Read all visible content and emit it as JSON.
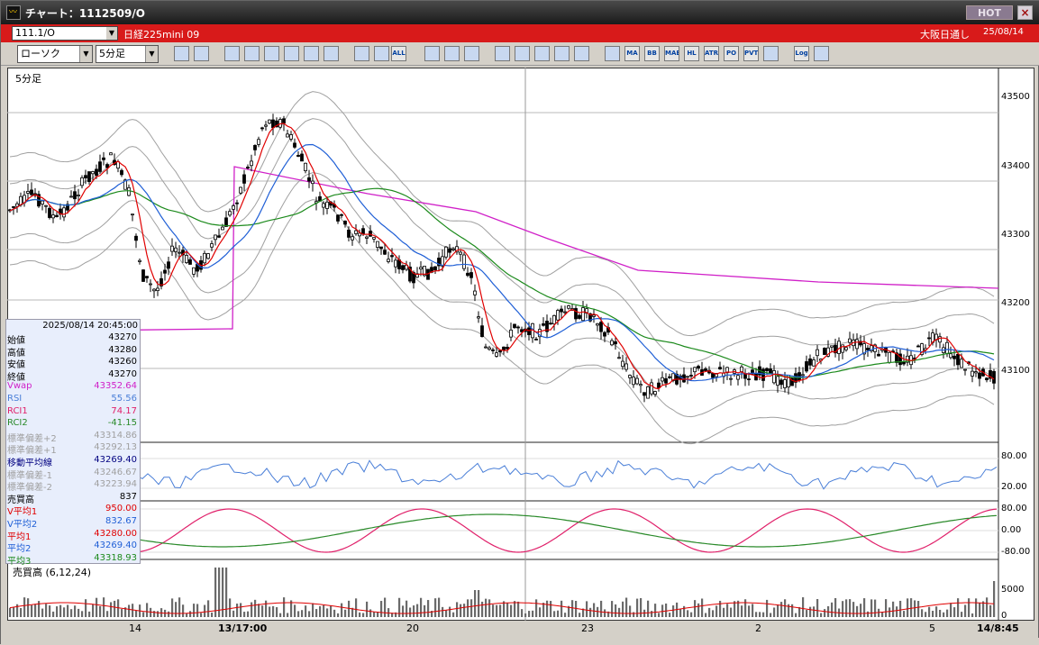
{
  "window": {
    "title": "チャート：1112509/O",
    "hot_label": "HOT",
    "close_glyph": "×",
    "app_icon_glyph": "〰"
  },
  "infobar": {
    "symbol": "111.1/O",
    "instrument": "日経225mini 09",
    "session": "大阪日通し",
    "date": "25/08/14"
  },
  "toolbar": {
    "chart_type": "ローソク",
    "timeframe": "5分足",
    "buttons": [
      "magnifier-icon",
      "window-icon",
      "pencil-icon",
      "tool-icon",
      "cursor-icon",
      "return-icon",
      "notepad-icon",
      "trash-icon",
      "candle-a-icon",
      "candle-b-icon",
      "ALL",
      "gear-icon",
      "brush-icon",
      "palette-icon",
      "download-icon",
      "zoom-icon",
      "grid-icon",
      "mark-icon",
      "disabled-icon",
      "indicator-icon",
      "MA",
      "BB",
      "MAE",
      "HL",
      "ATR",
      "PO",
      "PVT",
      "box-icon",
      "Log",
      "exit-icon"
    ]
  },
  "chart": {
    "timeframe_label": "5分足",
    "volume_label": "売買高 (6,12,24)",
    "colors": {
      "ma_short": "#e00000",
      "ma_mid": "#1f5fd6",
      "ma_long": "#1c8a1c",
      "vwap": "#d020c8",
      "bands": "#a0a0a0",
      "rsi": "#4a7fd8",
      "rci1": "#e0206a",
      "rci2": "#2a8a2a",
      "grid": "#b8b8b8"
    },
    "price_axis": [
      "43500",
      "43400",
      "43300",
      "43200",
      "43100"
    ],
    "rsi_axis": [
      "80.00",
      "20.00"
    ],
    "rci_axis": [
      "80.00",
      "0.00",
      "-80.00"
    ],
    "volume_axis": [
      "5000",
      "0"
    ],
    "x_labels": [
      "14",
      "13/17:00",
      "20",
      "23",
      "2",
      "5",
      "14/8:45"
    ]
  },
  "panel": {
    "datetime": "2025/08/14  20:45:00",
    "rows": [
      {
        "key": "始値",
        "value": "43270",
        "color": "#000000"
      },
      {
        "key": "高値",
        "value": "43280",
        "color": "#000000"
      },
      {
        "key": "安値",
        "value": "43260",
        "color": "#000000"
      },
      {
        "key": "終値",
        "value": "43270",
        "color": "#000000"
      },
      {
        "key": "Vwap",
        "value": "43352.64",
        "color": "#d020c8"
      },
      {
        "key": "RSI",
        "value": "55.56",
        "color": "#4a7fd8"
      },
      {
        "key": "RCI1",
        "value": "74.17",
        "color": "#e0206a"
      },
      {
        "key": "RCI2",
        "value": "-41.15",
        "color": "#2a8a2a"
      },
      {
        "key": "標準偏差+2",
        "value": "43314.86",
        "color": "#a0a0a0"
      },
      {
        "key": "標準偏差+1",
        "value": "43292.13",
        "color": "#a0a0a0"
      },
      {
        "key": "移動平均線",
        "value": "43269.40",
        "color": "#000080"
      },
      {
        "key": "標準偏差-1",
        "value": "43246.67",
        "color": "#a0a0a0"
      },
      {
        "key": "標準偏差-2",
        "value": "43223.94",
        "color": "#a0a0a0"
      },
      {
        "key": "売買高",
        "value": "837",
        "color": "#000000"
      },
      {
        "key": "V平均1",
        "value": "950.00",
        "color": "#e00000"
      },
      {
        "key": "V平均2",
        "value": "832.67",
        "color": "#1f5fd6"
      },
      {
        "key": "平均1",
        "value": "43280.00",
        "color": "#e00000"
      },
      {
        "key": "平均2",
        "value": "43269.40",
        "color": "#1f5fd6"
      },
      {
        "key": "平均3",
        "value": "43318.93",
        "color": "#1c8a1c"
      }
    ]
  }
}
